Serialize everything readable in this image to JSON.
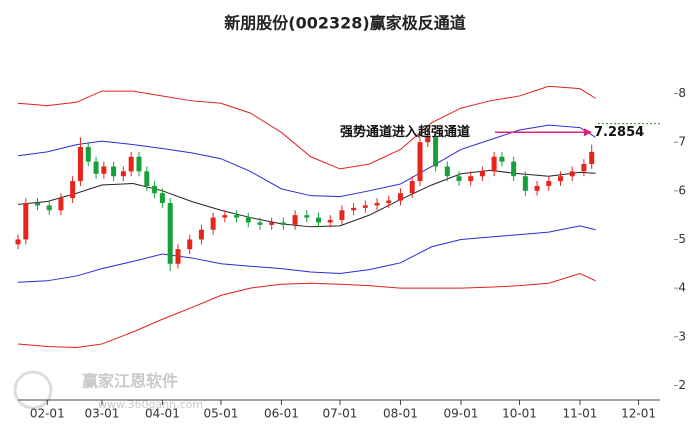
{
  "chart_data": {
    "type": "candlestick",
    "title": "新朋股份(002328)赢家极反通道",
    "xlim": [
      16,
      345
    ],
    "ylim": [
      1.7,
      9.1
    ],
    "yticks": [
      2,
      3,
      4,
      5,
      6,
      7,
      8
    ],
    "xticks": [
      {
        "value": 31,
        "label": "02-01"
      },
      {
        "value": 59,
        "label": "03-01"
      },
      {
        "value": 90,
        "label": "04-01"
      },
      {
        "value": 120,
        "label": "05-01"
      },
      {
        "value": 151,
        "label": "06-01"
      },
      {
        "value": 181,
        "label": "07-01"
      },
      {
        "value": 212,
        "label": "08-01"
      },
      {
        "value": 243,
        "label": "09-01"
      },
      {
        "value": 273,
        "label": "10-01"
      },
      {
        "value": 304,
        "label": "11-01"
      },
      {
        "value": 334,
        "label": "12-01"
      }
    ],
    "up_color": "#e8241a",
    "down_color": "#16a03a",
    "candles": {
      "x": [
        16,
        20,
        26,
        32,
        38,
        44,
        48,
        52,
        56,
        60,
        65,
        70,
        74,
        78,
        82,
        86,
        90,
        94,
        98,
        104,
        110,
        116,
        122,
        128,
        134,
        140,
        146,
        152,
        158,
        164,
        170,
        176,
        182,
        188,
        194,
        200,
        206,
        212,
        218,
        222,
        226,
        230,
        236,
        242,
        248,
        254,
        260,
        264,
        270,
        276,
        282,
        288,
        294,
        300,
        306,
        310
      ],
      "open": [
        4.9,
        5.0,
        5.75,
        5.7,
        5.6,
        5.85,
        6.2,
        6.9,
        6.6,
        6.35,
        6.5,
        6.3,
        6.4,
        6.7,
        6.4,
        6.1,
        5.95,
        5.75,
        4.5,
        4.8,
        5.0,
        5.2,
        5.45,
        5.5,
        5.45,
        5.35,
        5.3,
        5.35,
        5.3,
        5.5,
        5.45,
        5.35,
        5.4,
        5.6,
        5.65,
        5.7,
        5.75,
        5.8,
        5.95,
        6.2,
        7.0,
        7.1,
        6.5,
        6.3,
        6.2,
        6.3,
        6.4,
        6.7,
        6.6,
        6.3,
        6.0,
        6.1,
        6.2,
        6.3,
        6.4,
        6.55
      ],
      "high": [
        5.1,
        5.85,
        5.85,
        5.8,
        5.95,
        6.3,
        7.1,
        7.0,
        6.7,
        6.6,
        6.6,
        6.5,
        6.8,
        6.8,
        6.5,
        6.2,
        6.05,
        5.85,
        4.9,
        5.1,
        5.3,
        5.55,
        5.6,
        5.6,
        5.55,
        5.45,
        5.45,
        5.45,
        5.6,
        5.6,
        5.55,
        5.5,
        5.7,
        5.75,
        5.8,
        5.85,
        5.9,
        6.05,
        6.3,
        7.1,
        7.3,
        7.2,
        6.6,
        6.4,
        6.4,
        6.5,
        6.8,
        6.8,
        6.7,
        6.4,
        6.2,
        6.3,
        6.4,
        6.5,
        6.65,
        6.95
      ],
      "low": [
        4.8,
        4.9,
        5.6,
        5.5,
        5.5,
        5.75,
        6.1,
        6.5,
        6.25,
        6.25,
        6.2,
        6.2,
        6.3,
        6.3,
        6.0,
        5.85,
        5.65,
        4.35,
        4.4,
        4.7,
        4.9,
        5.1,
        5.35,
        5.35,
        5.25,
        5.2,
        5.2,
        5.2,
        5.2,
        5.35,
        5.25,
        5.25,
        5.3,
        5.5,
        5.55,
        5.6,
        5.65,
        5.7,
        5.85,
        6.1,
        6.9,
        6.4,
        6.2,
        6.1,
        6.1,
        6.2,
        6.3,
        6.5,
        6.2,
        5.9,
        5.9,
        6.0,
        6.1,
        6.2,
        6.3,
        6.45
      ],
      "close": [
        5.0,
        5.75,
        5.7,
        5.6,
        5.85,
        6.2,
        6.9,
        6.6,
        6.35,
        6.5,
        6.3,
        6.4,
        6.7,
        6.4,
        6.1,
        5.95,
        5.75,
        4.5,
        4.8,
        5.0,
        5.2,
        5.45,
        5.5,
        5.45,
        5.35,
        5.3,
        5.35,
        5.3,
        5.5,
        5.45,
        5.35,
        5.4,
        5.6,
        5.65,
        5.7,
        5.75,
        5.8,
        5.95,
        6.2,
        7.0,
        7.1,
        6.5,
        6.3,
        6.2,
        6.3,
        6.4,
        6.7,
        6.6,
        6.3,
        6.0,
        6.1,
        6.2,
        6.3,
        6.4,
        6.55,
        6.8
      ]
    },
    "band_x": [
      16,
      31,
      46,
      59,
      75,
      90,
      105,
      120,
      135,
      151,
      166,
      181,
      196,
      212,
      228,
      243,
      258,
      273,
      288,
      304,
      312
    ],
    "series": [
      {
        "color": "#e02020",
        "values": [
          7.8,
          7.75,
          7.82,
          8.05,
          8.05,
          7.95,
          7.85,
          7.8,
          7.6,
          7.2,
          6.7,
          6.45,
          6.55,
          6.85,
          7.4,
          7.7,
          7.85,
          7.95,
          8.15,
          8.1,
          7.9
        ]
      },
      {
        "color": "#2c2cd8",
        "values": [
          6.72,
          6.8,
          6.95,
          7.02,
          6.95,
          6.87,
          6.78,
          6.66,
          6.4,
          6.04,
          5.9,
          5.88,
          6.0,
          6.14,
          6.5,
          6.85,
          7.05,
          7.25,
          7.35,
          7.3,
          7.1
        ]
      },
      {
        "color": "#222222",
        "values": [
          5.72,
          5.78,
          5.95,
          6.12,
          6.15,
          6.0,
          5.78,
          5.6,
          5.45,
          5.32,
          5.26,
          5.28,
          5.5,
          5.82,
          6.12,
          6.35,
          6.42,
          6.35,
          6.3,
          6.38,
          6.36
        ]
      },
      {
        "color": "#2c2cd8",
        "values": [
          4.12,
          4.15,
          4.25,
          4.4,
          4.55,
          4.7,
          4.62,
          4.5,
          4.45,
          4.4,
          4.33,
          4.3,
          4.38,
          4.52,
          4.85,
          5.0,
          5.05,
          5.1,
          5.15,
          5.28,
          5.2
        ]
      },
      {
        "color": "#e02020",
        "values": [
          2.85,
          2.8,
          2.78,
          2.85,
          3.1,
          3.36,
          3.6,
          3.85,
          4.0,
          4.08,
          4.1,
          4.08,
          4.05,
          4.0,
          4.0,
          4.0,
          4.02,
          4.05,
          4.1,
          4.3,
          4.15
        ]
      }
    ],
    "annotation": {
      "text": "强势通道进入超强通道",
      "value": 7.2854,
      "color": "#e0207a"
    },
    "ref_line": {
      "value": 7.38,
      "color": "#16a03a"
    },
    "watermark": {
      "name": "赢家江恩软件",
      "url": "www.360gann.com"
    }
  }
}
